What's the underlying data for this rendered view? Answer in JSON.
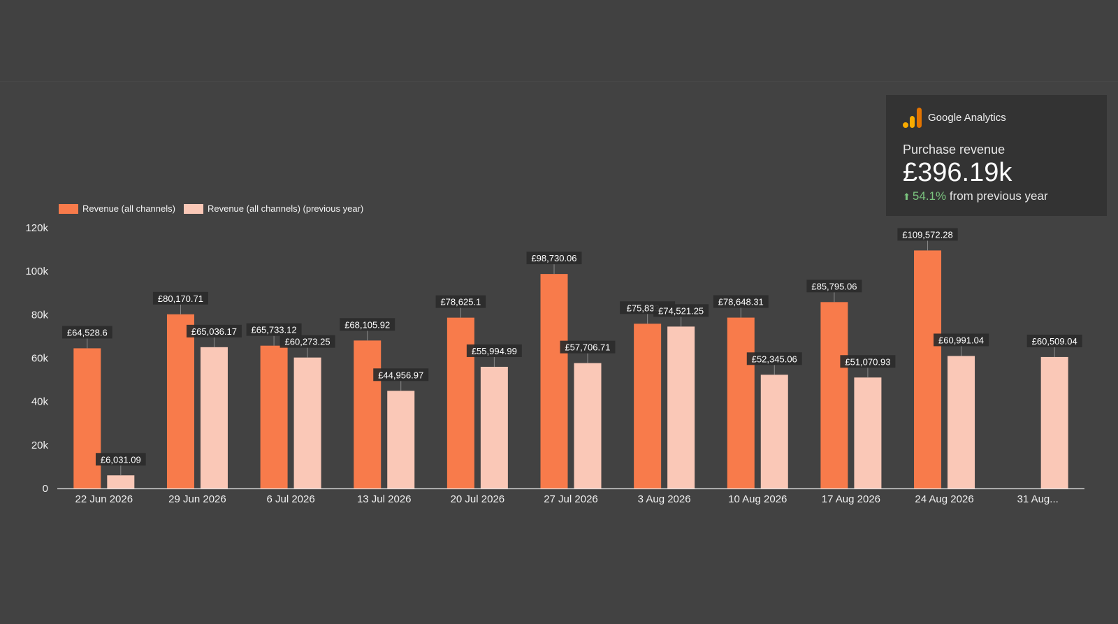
{
  "colors": {
    "background": "#424242",
    "current": "#f87b4b",
    "previous": "#fac8b7",
    "label_bg": "#2b2b2b",
    "positive": "#7bc47f"
  },
  "scorecard": {
    "brand": "Google Analytics",
    "metric": "Purchase revenue",
    "value": "£396.19k",
    "change_pct": "54.1%",
    "change_suffix": "from previous year",
    "change_icon": "arrow-up-icon"
  },
  "chart_data": {
    "type": "bar",
    "legend_position": "top-left",
    "grid": false,
    "ylim": [
      0,
      120000
    ],
    "yticks": [
      0,
      20000,
      40000,
      60000,
      80000,
      100000,
      120000
    ],
    "ytick_labels": [
      "0",
      "20k",
      "40k",
      "60k",
      "80k",
      "100k",
      "120k"
    ],
    "categories": [
      "22 Jun 2026",
      "29 Jun 2026",
      "6 Jul 2026",
      "13 Jul 2026",
      "20 Jul 2026",
      "27 Jul 2026",
      "3 Aug 2026",
      "10 Aug 2026",
      "17 Aug 2026",
      "24 Aug 2026",
      "31 Aug..."
    ],
    "series": [
      {
        "name": "Revenue (all channels)",
        "values": [
          64528.6,
          80170.71,
          65733.12,
          68105.92,
          78625.1,
          98730.06,
          75833,
          78648.31,
          85795.06,
          109572.28,
          null
        ],
        "labels": [
          "£64,528.6",
          "£80,170.71",
          "£65,733.12",
          "£68,105.92",
          "£78,625.1",
          "£98,730.06",
          "£75,833.▪▪",
          "£78,648.31",
          "£85,795.06",
          "£109,572.28",
          ""
        ]
      },
      {
        "name": "Revenue (all channels) (previous year)",
        "values": [
          6031.09,
          65036.17,
          60273.25,
          44956.97,
          55994.99,
          57706.71,
          74521.25,
          52345.06,
          51070.93,
          60991.04,
          60509.04
        ],
        "labels": [
          "£6,031.09",
          "£65,036.17",
          "£60,273.25",
          "£44,956.97",
          "£55,994.99",
          "£57,706.71",
          "£74,521.25",
          "£52,345.06",
          "£51,070.93",
          "£60,991.04",
          "£60,509.04"
        ]
      }
    ]
  }
}
